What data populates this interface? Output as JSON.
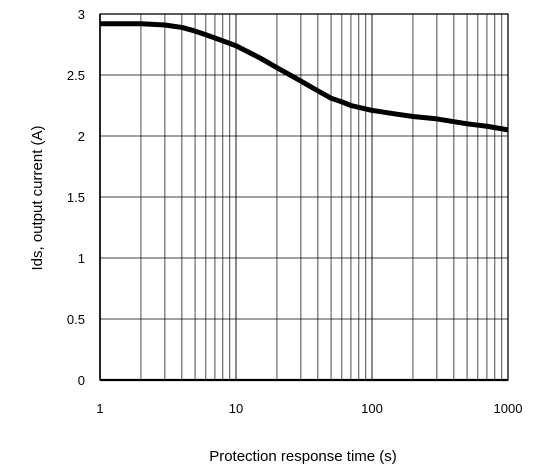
{
  "chart_data": {
    "type": "line",
    "xlabel": "Protection response time (s)",
    "ylabel": "Ids, output current (A)",
    "x_scale": "log",
    "xlim": [
      1,
      1000
    ],
    "ylim": [
      0,
      3
    ],
    "grid": true,
    "x_ticks": [
      1,
      10,
      100,
      1000
    ],
    "x_tick_labels": [
      "1",
      "10",
      "100",
      "1000"
    ],
    "y_ticks": [
      0,
      0.5,
      1,
      1.5,
      2,
      2.5,
      3
    ],
    "y_tick_labels": [
      "0",
      "0.5",
      "1",
      "1.5",
      "2",
      "2.5",
      "3"
    ],
    "series": [
      {
        "color": "#000000",
        "x": [
          1,
          2,
          3,
          4,
          5,
          6,
          8,
          10,
          15,
          20,
          30,
          40,
          50,
          60,
          70,
          100,
          150,
          200,
          300,
          500,
          700,
          1000
        ],
        "y": [
          2.92,
          2.92,
          2.91,
          2.89,
          2.86,
          2.83,
          2.78,
          2.74,
          2.64,
          2.56,
          2.45,
          2.37,
          2.31,
          2.28,
          2.25,
          2.21,
          2.18,
          2.16,
          2.14,
          2.1,
          2.08,
          2.05
        ]
      }
    ]
  }
}
